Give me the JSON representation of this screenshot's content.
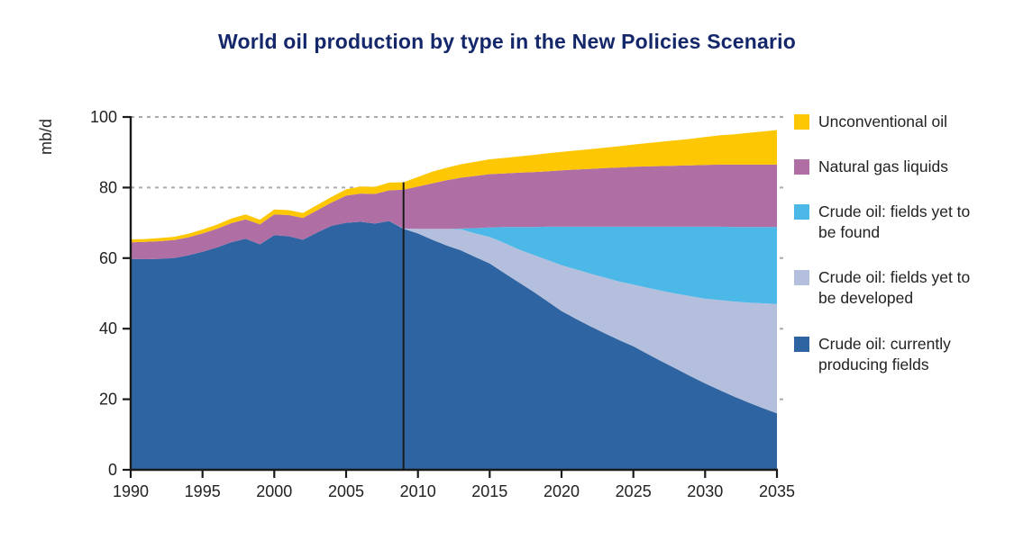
{
  "title": "World oil production by type in the New Policies Scenario",
  "chart_data": {
    "type": "area",
    "stacked": true,
    "title": "World oil production by type in the New Policies Scenario",
    "ylabel": "mb/d",
    "xlabel": "",
    "xlim": [
      1990,
      2035
    ],
    "ylim": [
      0,
      100
    ],
    "x_ticks": [
      1990,
      1995,
      2000,
      2005,
      2010,
      2015,
      2020,
      2025,
      2030,
      2035
    ],
    "y_ticks": [
      0,
      20,
      40,
      60,
      80,
      100
    ],
    "grid": "horizontal-dashed",
    "legend_position": "right",
    "annotation": {
      "vline_year": 2009
    },
    "x": [
      1990,
      1991,
      1992,
      1993,
      1994,
      1995,
      1996,
      1997,
      1998,
      1999,
      2000,
      2001,
      2002,
      2003,
      2004,
      2005,
      2006,
      2007,
      2008,
      2009,
      2010,
      2011,
      2012,
      2013,
      2014,
      2015,
      2016,
      2017,
      2018,
      2019,
      2020,
      2021,
      2022,
      2023,
      2024,
      2025,
      2026,
      2027,
      2028,
      2029,
      2030,
      2031,
      2032,
      2033,
      2034,
      2035
    ],
    "series": [
      {
        "name": "Crude oil: currently producing fields",
        "color": "#2D64A1",
        "values": [
          59.8,
          59.7,
          59.8,
          60.0,
          60.8,
          61.8,
          63.0,
          64.5,
          65.5,
          63.9,
          66.5,
          66.2,
          65.2,
          67.3,
          69.2,
          70.0,
          70.3,
          69.8,
          70.5,
          68.3,
          67.0,
          65.2,
          63.6,
          62.2,
          60.3,
          58.5,
          55.8,
          53.2,
          50.6,
          47.8,
          45.0,
          42.8,
          40.7,
          38.7,
          36.8,
          35.0,
          32.8,
          30.7,
          28.6,
          26.5,
          24.5,
          22.6,
          20.8,
          19.1,
          17.5,
          16.0
        ]
      },
      {
        "name": "Crude oil: fields yet to be developed",
        "color": "#B4BFDD",
        "values": [
          0,
          0,
          0,
          0,
          0,
          0,
          0,
          0,
          0,
          0,
          0,
          0,
          0,
          0,
          0,
          0,
          0,
          0,
          0,
          0.1,
          1.3,
          3.1,
          4.7,
          6.0,
          6.7,
          7.5,
          8.5,
          9.3,
          10.4,
          11.7,
          13.0,
          14.0,
          14.9,
          15.8,
          16.6,
          17.5,
          18.8,
          20.0,
          21.3,
          22.7,
          24.0,
          25.5,
          26.9,
          28.3,
          29.7,
          31.0
        ]
      },
      {
        "name": "Crude oil: fields yet to be found",
        "color": "#4BB8E8",
        "values": [
          0,
          0,
          0,
          0,
          0,
          0,
          0,
          0,
          0,
          0,
          0,
          0,
          0,
          0,
          0,
          0,
          0,
          0,
          0,
          0,
          0,
          0,
          0,
          0.2,
          1.5,
          2.7,
          4.5,
          6.3,
          7.8,
          9.4,
          10.9,
          12.1,
          13.3,
          14.4,
          15.5,
          16.4,
          17.3,
          18.2,
          19.0,
          19.7,
          20.4,
          20.8,
          21.1,
          21.4,
          21.6,
          21.8
        ]
      },
      {
        "name": "Natural gas liquids",
        "color": "#B06FA4",
        "values": [
          4.7,
          4.9,
          5.0,
          5.1,
          5.1,
          5.2,
          5.3,
          5.4,
          5.5,
          5.7,
          5.9,
          6.0,
          6.2,
          6.3,
          6.6,
          7.7,
          8.0,
          8.4,
          8.7,
          11.0,
          12.0,
          12.9,
          13.8,
          14.4,
          14.8,
          15.1,
          15.2,
          15.4,
          15.6,
          15.7,
          16.0,
          16.2,
          16.4,
          16.6,
          16.8,
          17.0,
          17.1,
          17.2,
          17.3,
          17.4,
          17.5,
          17.6,
          17.7,
          17.7,
          17.7,
          17.7
        ]
      },
      {
        "name": "Unconventional oil",
        "color": "#FDC704",
        "values": [
          0.8,
          0.8,
          0.9,
          0.9,
          1.0,
          1.1,
          1.2,
          1.3,
          1.4,
          1.3,
          1.4,
          1.4,
          1.4,
          1.5,
          1.6,
          1.8,
          2.0,
          2.0,
          2.2,
          2.1,
          2.7,
          3.3,
          3.5,
          3.8,
          4.0,
          4.2,
          4.4,
          4.6,
          4.8,
          5.1,
          5.2,
          5.4,
          5.6,
          5.8,
          6.0,
          6.3,
          6.6,
          6.9,
          7.2,
          7.5,
          7.9,
          8.3,
          8.6,
          9.0,
          9.4,
          9.8
        ]
      }
    ],
    "legend_order_top_to_bottom": [
      "Unconventional oil",
      "Natural gas liquids",
      "Crude oil: fields yet to be found",
      "Crude oil: fields yet to be developed",
      "Crude oil: currently producing fields"
    ]
  },
  "colors": {
    "title_text": "#15276B",
    "axis": "#1A1A1A",
    "gridline": "#ABABAB",
    "annotation_line": "#1A1A1A"
  }
}
